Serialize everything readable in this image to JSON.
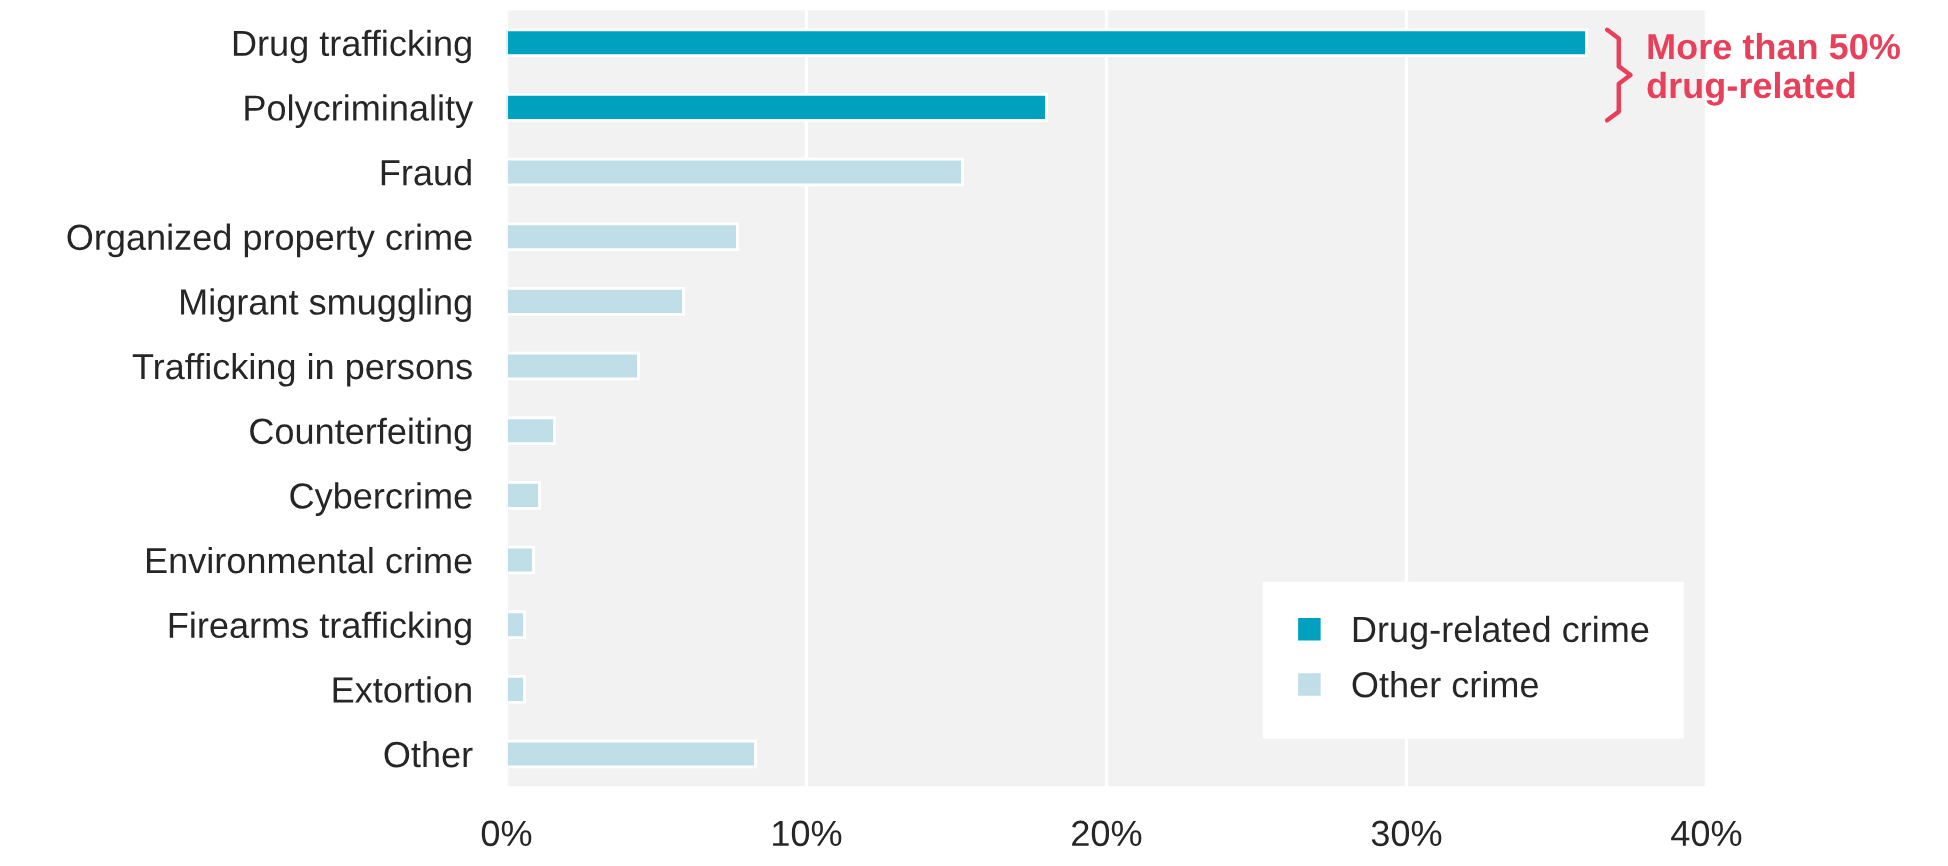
{
  "chart_data": {
    "type": "bar",
    "orientation": "horizontal",
    "categories": [
      "Drug trafficking",
      "Polycriminality",
      "Fraud",
      "Organized property crime",
      "Migrant smuggling",
      "Trafficking in persons",
      "Counterfeiting",
      "Cybercrime",
      "Environmental crime",
      "Firearms trafficking",
      "Extortion",
      "Other"
    ],
    "series": [
      {
        "name": "Drug-related crime",
        "color": "#00a0bf",
        "values": [
          36.0,
          18.0,
          null,
          null,
          null,
          null,
          null,
          null,
          null,
          null,
          null,
          null
        ]
      },
      {
        "name": "Other crime",
        "color": "#c0dee7",
        "values": [
          null,
          null,
          15.2,
          7.7,
          5.9,
          4.4,
          1.6,
          1.1,
          0.9,
          0.6,
          0.6,
          8.3
        ]
      }
    ],
    "xlim": [
      0,
      40
    ],
    "xticks": [
      {
        "value": 0,
        "label": "0%"
      },
      {
        "value": 10,
        "label": "10%"
      },
      {
        "value": 20,
        "label": "20%"
      },
      {
        "value": 30,
        "label": "30%"
      },
      {
        "value": 40,
        "label": "40%"
      }
    ],
    "grid": "x",
    "legend": "bottom right",
    "annotations": [
      "More than 50%\ndrug-related"
    ]
  }
}
